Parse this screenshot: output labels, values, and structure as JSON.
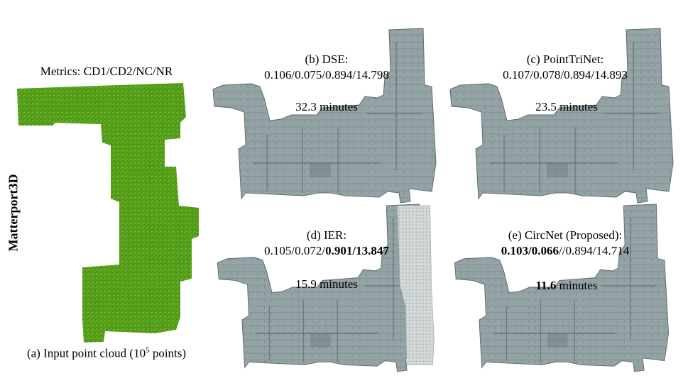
{
  "figure": {
    "row_label": "Matterport3D",
    "metrics_legend": "Metrics: CD1/CD2/NC/NR",
    "input": {
      "caption_prefix": "(a) Input point cloud (10",
      "caption_sup": "5",
      "caption_suffix": " points)"
    },
    "panels": {
      "b": {
        "title": "(b) DSE:",
        "metrics": "0.106/0.075/0.894/14.798",
        "time": "32.3 minutes"
      },
      "c": {
        "title": "(c) PointTriNet:",
        "metrics": "0.107/0.078/0.894/14.893",
        "time": "23.5 minutes"
      },
      "d": {
        "title": "(d) IER:",
        "metrics_plain": "0.105/0.072/",
        "metrics_bold": "0.901/13.847",
        "time": "15.9 minutes"
      },
      "e": {
        "title": "(e) CircNet (Proposed):",
        "metrics_bold": "0.103/0.066",
        "metrics_plain": "//0.894/14.714",
        "time_bold": "11.6",
        "time_plain": " minutes"
      }
    },
    "colors": {
      "point_cloud": "#5aa51c",
      "mesh": "#94a3a6",
      "mesh_dark": "#5f6d70",
      "noise": "#d9dcdc"
    }
  }
}
